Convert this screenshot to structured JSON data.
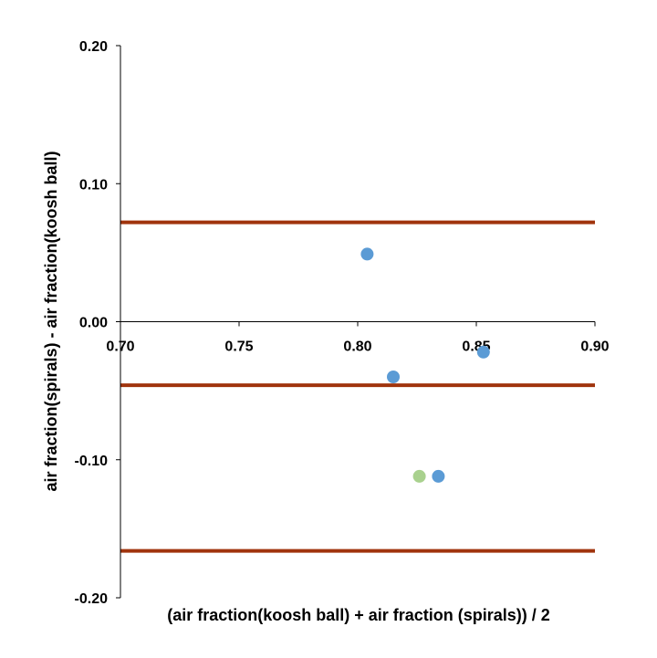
{
  "chart_data": {
    "type": "scatter",
    "title": "",
    "xlabel": "(air fraction(koosh ball) + air fraction (spirals)) / 2",
    "ylabel": "air fraction(spirals) - air fraction(koosh ball)",
    "xlim": [
      0.7,
      0.9
    ],
    "ylim": [
      -0.2,
      0.2
    ],
    "x_ticks": [
      "0.70",
      "0.75",
      "0.80",
      "0.85",
      "0.90"
    ],
    "y_ticks": [
      "0.20",
      "0.10",
      "0.00",
      "-0.10",
      "-0.20"
    ],
    "x_tick_values": [
      0.7,
      0.75,
      0.8,
      0.85,
      0.9
    ],
    "y_tick_values": [
      0.2,
      0.1,
      0.0,
      -0.1,
      -0.2
    ],
    "grid": false,
    "series": [
      {
        "name": "blue points",
        "color": "#5b9bd5",
        "points": [
          {
            "x": 0.804,
            "y": 0.049
          },
          {
            "x": 0.853,
            "y": -0.022
          },
          {
            "x": 0.815,
            "y": -0.04
          },
          {
            "x": 0.834,
            "y": -0.112
          }
        ]
      },
      {
        "name": "green points",
        "color": "#a9d18e",
        "points": [
          {
            "x": 0.826,
            "y": -0.112
          }
        ]
      }
    ],
    "reference_lines": [
      {
        "name": "upper limit of agreement",
        "y": 0.072,
        "color": "#a0340d"
      },
      {
        "name": "mean difference",
        "y": -0.046,
        "color": "#a0340d"
      },
      {
        "name": "lower limit of agreement",
        "y": -0.166,
        "color": "#a0340d"
      }
    ]
  }
}
